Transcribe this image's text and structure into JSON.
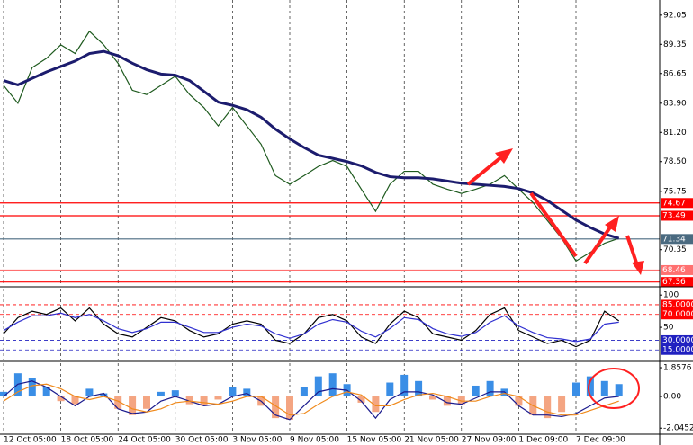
{
  "chart_data": [
    {
      "type": "line",
      "categories": [
        "12 Oct 05:00",
        null,
        null,
        null,
        "18 Oct 05:00",
        null,
        null,
        null,
        "24 Oct 05:00",
        null,
        null,
        null,
        "30 Oct 05:00",
        null,
        null,
        null,
        "3 Nov 05:00",
        null,
        null,
        null,
        "9 Nov 05:00",
        null,
        null,
        null,
        "15 Nov 05:00",
        null,
        null,
        null,
        "21 Nov 05:00",
        null,
        null,
        null,
        "27 Nov 09:00",
        null,
        null,
        null,
        "1 Dec 09:00",
        null,
        null,
        null,
        "7 Dec 09:00",
        null,
        null,
        null,
        null,
        null
      ],
      "series": [
        {
          "color": "#1e5a1e",
          "values": [
            85.55,
            83.9,
            87.2,
            88.05,
            89.3,
            88.5,
            90.55,
            89.3,
            87.6,
            85.1,
            84.7,
            85.55,
            86.4,
            84.7,
            83.5,
            81.8,
            83.5,
            81.8,
            80.1,
            77.2,
            76.4,
            77.2,
            78.05,
            78.6,
            78.05,
            75.95,
            73.9,
            76.4,
            77.6,
            77.6,
            76.4,
            75.95,
            75.55,
            75.95,
            76.4,
            77.2,
            75.95,
            74.7,
            73.05,
            71.4,
            69.3,
            70.1,
            70.95,
            71.4,
            null,
            null
          ]
        },
        {
          "color": "#1c1c6e",
          "values": [
            86,
            85.6,
            86.2,
            86.8,
            87.3,
            87.8,
            88.5,
            88.7,
            88.3,
            87.6,
            87,
            86.6,
            86.5,
            86,
            85,
            84,
            83.7,
            83.3,
            82.6,
            81.5,
            80.6,
            79.8,
            79.1,
            78.8,
            78.5,
            78.1,
            77.5,
            77.1,
            77,
            77,
            76.9,
            76.7,
            76.5,
            76.4,
            76.3,
            76.2,
            76,
            75.6,
            74.9,
            74,
            73.1,
            72.4,
            71.8,
            71.4,
            null,
            null
          ]
        }
      ],
      "ylim": [
        67.0,
        93.45
      ],
      "yticks": [
        92.05,
        89.35,
        86.65,
        {
          "value": 83.9,
          "label": "83.90"
        },
        {
          "value": 81.2,
          "label": "81.20"
        },
        {
          "value": 78.5,
          "label": "78.50"
        },
        75.75,
        70.35
      ],
      "hlines": [
        {
          "value": 74.67,
          "color": "#ff0000"
        },
        {
          "value": 73.49,
          "color": "#ff0000"
        },
        {
          "value": 71.34,
          "color": "#4a6a80"
        },
        {
          "value": 68.46,
          "color": "#ff7070"
        },
        {
          "value": 67.36,
          "color": "#ff0000"
        }
      ]
    },
    {
      "type": "line",
      "series": [
        {
          "color": "#000000",
          "values": [
            40,
            65,
            75,
            70,
            80,
            60,
            80,
            55,
            40,
            35,
            50,
            65,
            60,
            45,
            35,
            40,
            55,
            60,
            55,
            30,
            25,
            40,
            65,
            70,
            60,
            35,
            25,
            55,
            75,
            65,
            40,
            35,
            30,
            45,
            70,
            80,
            45,
            35,
            25,
            30,
            20,
            30,
            75,
            60,
            null,
            null
          ]
        },
        {
          "color": "#3030d0",
          "values": [
            45,
            58,
            68,
            68,
            72,
            65,
            70,
            60,
            48,
            42,
            48,
            58,
            58,
            50,
            42,
            42,
            50,
            55,
            52,
            40,
            33,
            40,
            55,
            62,
            58,
            44,
            35,
            48,
            65,
            62,
            48,
            40,
            36,
            42,
            58,
            68,
            52,
            42,
            34,
            32,
            28,
            32,
            55,
            58,
            null,
            null
          ]
        }
      ],
      "ylim": [
        0,
        110
      ],
      "yticks": [
        100,
        50
      ],
      "hlines": [
        {
          "value": 85,
          "label": "85.0000",
          "color": "#ff0000"
        },
        {
          "value": 70,
          "label": "70.0000",
          "color": "#ff0000"
        },
        {
          "value": 30,
          "label": "30.0000",
          "color": "#2020c0"
        },
        {
          "value": 15,
          "label": "15.0000",
          "color": "#2020c0"
        }
      ]
    },
    {
      "type": "bar",
      "values": [
        0.3,
        1.5,
        1.2,
        0.6,
        -0.3,
        -0.5,
        0.5,
        0.2,
        -0.8,
        -1.2,
        -0.8,
        0.3,
        0.4,
        -0.5,
        -0.6,
        -0.2,
        0.6,
        0.5,
        -0.6,
        -1.4,
        -1.5,
        0.6,
        1.3,
        1.5,
        0.8,
        -0.4,
        -1.0,
        0.9,
        1.4,
        1.0,
        -0.2,
        -0.6,
        -0.5,
        0.7,
        1.0,
        0.5,
        -0.6,
        -1.2,
        -1.4,
        -1.0,
        0.9,
        1.3,
        1.0,
        0.8,
        null,
        null
      ],
      "color": "#3a8ee6",
      "negative_color": "#f4a582",
      "series": [
        {
          "color": "#1c1c8e",
          "values": [
            0,
            0.8,
            1.0,
            0.6,
            0,
            -0.6,
            0,
            0.2,
            -0.8,
            -1.1,
            -1.0,
            -0.3,
            0,
            -0.3,
            -0.6,
            -0.5,
            0,
            0.2,
            -0.3,
            -1.2,
            -1.5,
            -0.6,
            0.3,
            0.5,
            0.4,
            -0.3,
            -1.4,
            -0.2,
            0.3,
            0.3,
            0.1,
            -0.4,
            -0.5,
            -0.1,
            0.3,
            0.3,
            -0.6,
            -1.2,
            -1.2,
            -1.3,
            -1.1,
            -0.6,
            -0.1,
            0,
            null,
            null
          ]
        },
        {
          "color": "#f08a1c",
          "values": [
            -0.3,
            0.3,
            0.7,
            0.8,
            0.5,
            0,
            -0.2,
            0,
            -0.3,
            -0.8,
            -1.0,
            -0.8,
            -0.4,
            -0.3,
            -0.4,
            -0.5,
            -0.3,
            0,
            0,
            -0.6,
            -1.2,
            -1.1,
            -0.5,
            0,
            0.3,
            0.1,
            -0.6,
            -0.6,
            -0.2,
            0.1,
            0.2,
            0,
            -0.3,
            -0.3,
            0,
            0.2,
            0,
            -0.6,
            -1.0,
            -1.2,
            -1.2,
            -0.9,
            -0.6,
            -0.3,
            null,
            null
          ]
        }
      ],
      "ylim": [
        -2.38,
        2.15
      ],
      "yticks": [
        1.8576,
        {
          "value": 0,
          "label": "0.00"
        },
        -2.0452
      ]
    }
  ]
}
